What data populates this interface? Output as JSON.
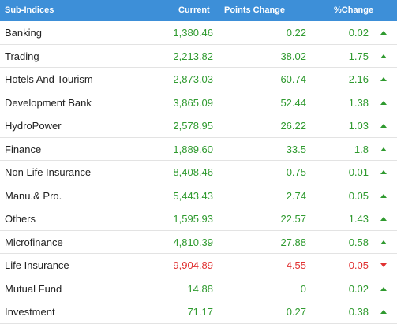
{
  "table": {
    "header": [
      "Sub-Indices",
      "Current",
      "Points Change",
      "%Change"
    ],
    "rows": [
      {
        "name": "Banking",
        "current": "1,380.46",
        "change": "0.22",
        "pct": "0.02",
        "trend": "up"
      },
      {
        "name": "Trading",
        "current": "2,213.82",
        "change": "38.02",
        "pct": "1.75",
        "trend": "up"
      },
      {
        "name": "Hotels And Tourism",
        "current": "2,873.03",
        "change": "60.74",
        "pct": "2.16",
        "trend": "up"
      },
      {
        "name": "Development Bank",
        "current": "3,865.09",
        "change": "52.44",
        "pct": "1.38",
        "trend": "up"
      },
      {
        "name": "HydroPower",
        "current": "2,578.95",
        "change": "26.22",
        "pct": "1.03",
        "trend": "up"
      },
      {
        "name": "Finance",
        "current": "1,889.60",
        "change": "33.5",
        "pct": "1.8",
        "trend": "up"
      },
      {
        "name": "Non Life Insurance",
        "current": "8,408.46",
        "change": "0.75",
        "pct": "0.01",
        "trend": "up"
      },
      {
        "name": "Manu.& Pro.",
        "current": "5,443.43",
        "change": "2.74",
        "pct": "0.05",
        "trend": "up"
      },
      {
        "name": "Others",
        "current": "1,595.93",
        "change": "22.57",
        "pct": "1.43",
        "trend": "up"
      },
      {
        "name": "Microfinance",
        "current": "4,810.39",
        "change": "27.88",
        "pct": "0.58",
        "trend": "up"
      },
      {
        "name": "Life Insurance",
        "current": "9,904.89",
        "change": "4.55",
        "pct": "0.05",
        "trend": "down"
      },
      {
        "name": "Mutual Fund",
        "current": "14.88",
        "change": "0",
        "pct": "0.02",
        "trend": "up"
      },
      {
        "name": "Investment",
        "current": "71.17",
        "change": "0.27",
        "pct": "0.38",
        "trend": "up"
      }
    ]
  }
}
